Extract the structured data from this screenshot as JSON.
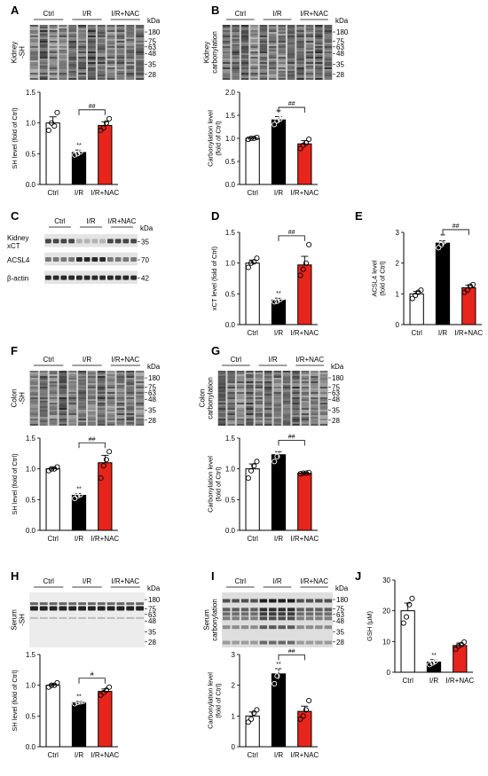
{
  "groups": [
    "Ctrl",
    "I/R",
    "I/R+NAC"
  ],
  "colors": {
    "Ctrl": "#ffffff",
    "I/R": "#000000",
    "I/R+NAC": "#e8251c"
  },
  "chart_data": [
    {
      "panel": "A",
      "type": "bar",
      "blot_label": "Kidney\n-SH",
      "kda": [
        "kDa",
        "180",
        "75",
        "63",
        "48",
        "35",
        "28"
      ],
      "categories": [
        "Ctrl",
        "I/R",
        "I/R+NAC"
      ],
      "values": [
        1.0,
        0.52,
        0.96
      ],
      "errors": [
        0.1,
        0.04,
        0.06
      ],
      "points": [
        [
          0.88,
          1.0,
          0.95,
          1.17
        ],
        [
          0.48,
          0.5,
          0.53,
          0.59
        ],
        [
          0.88,
          0.92,
          1.0,
          1.07
        ]
      ],
      "ylabel": "SH level (fold of Ctrl)",
      "ylim": [
        0,
        1.5
      ],
      "yticks": [
        "0.0",
        "0.5",
        "1.0",
        "1.5"
      ],
      "stars": "**",
      "sig": "##"
    },
    {
      "panel": "B",
      "type": "bar",
      "blot_label": "Kidney\ncarbonylation",
      "kda": [
        "kDa",
        "180",
        "75",
        "63",
        "48",
        "35",
        "28"
      ],
      "categories": [
        "Ctrl",
        "I/R",
        "I/R+NAC"
      ],
      "values": [
        1.0,
        1.4,
        0.88
      ],
      "errors": [
        0.02,
        0.07,
        0.07
      ],
      "points": [
        [
          0.98,
          1.0,
          1.0,
          1.02
        ],
        [
          1.3,
          1.38,
          1.42,
          1.48
        ],
        [
          0.78,
          0.85,
          0.9,
          0.98
        ]
      ],
      "ylabel": "Carbonylation level\n(fold of Ctrl)",
      "ylim": [
        0,
        2.0
      ],
      "yticks": [
        "0.0",
        "0.5",
        "1.0",
        "1.5",
        "2.0"
      ],
      "stars": "**",
      "sig": "##"
    },
    {
      "panel": "C",
      "type": "blot",
      "rows": [
        {
          "label": "Kidney\nxCT",
          "kda": "35"
        },
        {
          "label": "ACSL4",
          "kda": "70"
        },
        {
          "label": "β-actin",
          "kda": "42"
        }
      ],
      "kda_header": "kDa",
      "categories": [
        "Ctrl",
        "I/R",
        "I/R+NAC"
      ]
    },
    {
      "panel": "D",
      "type": "bar",
      "categories": [
        "Ctrl",
        "I/R",
        "I/R+NAC"
      ],
      "values": [
        1.0,
        0.4,
        0.97
      ],
      "errors": [
        0.05,
        0.03,
        0.14
      ],
      "points": [
        [
          0.93,
          1.0,
          1.02,
          1.08
        ],
        [
          0.37,
          0.38,
          0.41,
          0.44
        ],
        [
          0.8,
          0.9,
          1.0,
          1.3
        ]
      ],
      "ylabel": "xCT level (fold of Ctrl)",
      "ylim": [
        0,
        1.5
      ],
      "yticks": [
        "0.0",
        "0.5",
        "1.0",
        "1.5"
      ],
      "stars": "**",
      "sig": "##"
    },
    {
      "panel": "E",
      "type": "bar",
      "categories": [
        "Ctrl",
        "I/R",
        "I/R+NAC"
      ],
      "values": [
        1.0,
        2.65,
        1.2
      ],
      "errors": [
        0.08,
        0.08,
        0.08
      ],
      "points": [
        [
          0.85,
          0.95,
          1.05,
          1.12
        ],
        [
          2.5,
          2.6,
          2.7,
          2.8
        ],
        [
          1.05,
          1.12,
          1.25,
          1.3
        ]
      ],
      "ylabel": "ACSL4 level\n(fold of Ctrl)",
      "ylim": [
        0,
        3
      ],
      "yticks": [
        "0",
        "1",
        "2",
        "3"
      ],
      "stars": "**",
      "sig": "##"
    },
    {
      "panel": "F",
      "type": "bar",
      "blot_label": "Colon\n-SH",
      "kda": [
        "kDa",
        "180",
        "75",
        "63",
        "48",
        "35",
        "28"
      ],
      "categories": [
        "Ctrl",
        "I/R",
        "I/R+NAC"
      ],
      "values": [
        1.0,
        0.57,
        1.1
      ],
      "errors": [
        0.02,
        0.03,
        0.12
      ],
      "points": [
        [
          0.97,
          1.0,
          1.0,
          1.03
        ],
        [
          0.52,
          0.56,
          0.58,
          0.62
        ],
        [
          0.85,
          1.05,
          1.15,
          1.28
        ]
      ],
      "ylabel": "SH level (fold of Ctrl)",
      "ylim": [
        0,
        1.5
      ],
      "yticks": [
        "0.0",
        "0.5",
        "1.0",
        "1.5"
      ],
      "stars": "**",
      "sig": "##"
    },
    {
      "panel": "G",
      "type": "bar",
      "blot_label": "Colon\ncarbonylation",
      "kda": [
        "kDa",
        "180",
        "75",
        "63",
        "48",
        "35",
        "28"
      ],
      "categories": [
        "Ctrl",
        "I/R",
        "I/R+NAC"
      ],
      "values": [
        1.0,
        1.23,
        0.93
      ],
      "errors": [
        0.08,
        0.05,
        0.01
      ],
      "points": [
        [
          0.85,
          0.97,
          1.05,
          1.12
        ],
        [
          1.12,
          1.2,
          1.28,
          1.32
        ],
        [
          0.92,
          0.93,
          0.93,
          0.94
        ]
      ],
      "ylabel": "Carbonylation level\n(fold of Ctrl)",
      "ylim": [
        0,
        1.5
      ],
      "yticks": [
        "0.0",
        "0.5",
        "1.0",
        "1.5"
      ],
      "stars": "",
      "sig": "##"
    },
    {
      "panel": "H",
      "type": "bar",
      "blot_label": "Serum\n-SH",
      "kda": [
        "kDa",
        "180",
        "75",
        "63",
        "48",
        "35",
        "28"
      ],
      "categories": [
        "Ctrl",
        "I/R",
        "I/R+NAC"
      ],
      "values": [
        1.0,
        0.72,
        0.9
      ],
      "errors": [
        0.02,
        0.02,
        0.04
      ],
      "points": [
        [
          0.97,
          1.0,
          1.0,
          1.04
        ],
        [
          0.7,
          0.72,
          0.73,
          0.74
        ],
        [
          0.84,
          0.88,
          0.92,
          0.97
        ]
      ],
      "ylabel": "SH level (fold of Ctrl)",
      "ylim": [
        0,
        1.5
      ],
      "yticks": [
        "0.0",
        "0.5",
        "1.0",
        "1.5"
      ],
      "stars": "**",
      "sig": "#"
    },
    {
      "panel": "I",
      "type": "bar",
      "blot_label": "Serum\ncarbonylation",
      "kda": [
        "kDa",
        "180",
        "75",
        "63",
        "48",
        "35",
        "28"
      ],
      "categories": [
        "Ctrl",
        "I/R",
        "I/R+NAC"
      ],
      "values": [
        1.0,
        2.37,
        1.15
      ],
      "errors": [
        0.13,
        0.17,
        0.17
      ],
      "points": [
        [
          0.8,
          0.9,
          1.1,
          1.2
        ],
        [
          2.05,
          2.3,
          2.5,
          2.7
        ],
        [
          0.9,
          1.0,
          1.2,
          1.5
        ]
      ],
      "ylabel": "Carbonylation level\n(fold of Ctrl)",
      "ylim": [
        0,
        3
      ],
      "yticks": [
        "0",
        "1",
        "2",
        "3"
      ],
      "stars": "**",
      "sig": "##"
    },
    {
      "panel": "J",
      "type": "bar",
      "categories": [
        "Ctrl",
        "I/R",
        "I/R+NAC"
      ],
      "values": [
        20,
        3.3,
        8.7
      ],
      "errors": [
        2.5,
        0.8,
        0.8
      ],
      "points": [
        [
          16,
          18,
          22,
          24
        ],
        [
          2.5,
          3.0,
          3.5,
          4.5
        ],
        [
          7.5,
          8.5,
          9.0,
          9.8
        ]
      ],
      "ylabel": "GSH (μM)",
      "ylim": [
        0,
        30
      ],
      "yticks": [
        "0",
        "10",
        "20",
        "30"
      ],
      "stars": "**",
      "sig": ""
    }
  ]
}
